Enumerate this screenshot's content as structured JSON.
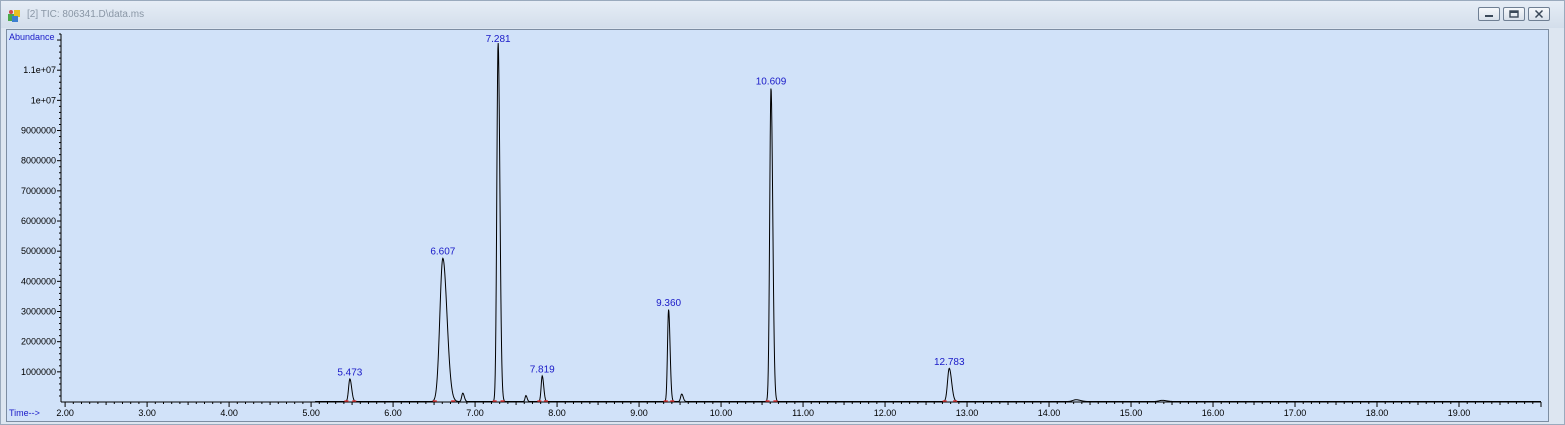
{
  "window": {
    "title": "[2] TIC: 806341.D\\data.ms",
    "buttons": [
      "minimize",
      "restore",
      "close"
    ]
  },
  "colors": {
    "trace": "#000000",
    "peak_label": "#1a1ac8",
    "axis_label": "#1a1ac8",
    "baseline_marker": "#e03030",
    "plot_bg": "#d1e2f9"
  },
  "chart_data": {
    "type": "line",
    "title": "",
    "ylabel": "Abundance",
    "xlabel": "Time-->",
    "xlim": [
      1.95,
      20.0
    ],
    "ylim": [
      0,
      12200000
    ],
    "x_ticks": [
      2,
      3,
      4,
      5,
      6,
      7,
      8,
      9,
      10,
      11,
      12,
      13,
      14,
      15,
      16,
      17,
      18,
      19
    ],
    "x_tick_labels": [
      "2.00",
      "3.00",
      "4.00",
      "5.00",
      "6.00",
      "7.00",
      "8.00",
      "9.00",
      "10.00",
      "11.00",
      "12.00",
      "13.00",
      "14.00",
      "15.00",
      "16.00",
      "17.00",
      "18.00",
      "19.00"
    ],
    "y_ticks": [
      1000000,
      2000000,
      3000000,
      4000000,
      5000000,
      6000000,
      7000000,
      8000000,
      9000000,
      10000000,
      11000000
    ],
    "y_tick_labels": [
      "1000000",
      "2000000",
      "3000000",
      "4000000",
      "5000000",
      "6000000",
      "7000000",
      "8000000",
      "9000000",
      "1e+07",
      "1.1e+07"
    ],
    "grid": false,
    "peaks": [
      {
        "rt": 5.473,
        "label": "5.473",
        "height": 750000,
        "width": 0.012
      },
      {
        "rt": 6.607,
        "label": "6.607",
        "height": 4750000,
        "width": 0.028
      },
      {
        "rt": 7.281,
        "label": "7.281",
        "height": 11900000,
        "width": 0.012
      },
      {
        "rt": 7.819,
        "label": "7.819",
        "height": 850000,
        "width": 0.01
      },
      {
        "rt": 9.36,
        "label": "9.360",
        "height": 3050000,
        "width": 0.01
      },
      {
        "rt": 10.609,
        "label": "10.609",
        "height": 10400000,
        "width": 0.012
      },
      {
        "rt": 12.783,
        "label": "12.783",
        "height": 1100000,
        "width": 0.016
      }
    ],
    "minor_peaks": [
      {
        "rt": 6.85,
        "height": 280000,
        "width": 0.01
      },
      {
        "rt": 7.62,
        "height": 200000,
        "width": 0.008
      },
      {
        "rt": 9.52,
        "height": 250000,
        "width": 0.01
      },
      {
        "rt": 14.33,
        "height": 60000,
        "width": 0.03
      },
      {
        "rt": 15.38,
        "height": 40000,
        "width": 0.03
      }
    ]
  }
}
